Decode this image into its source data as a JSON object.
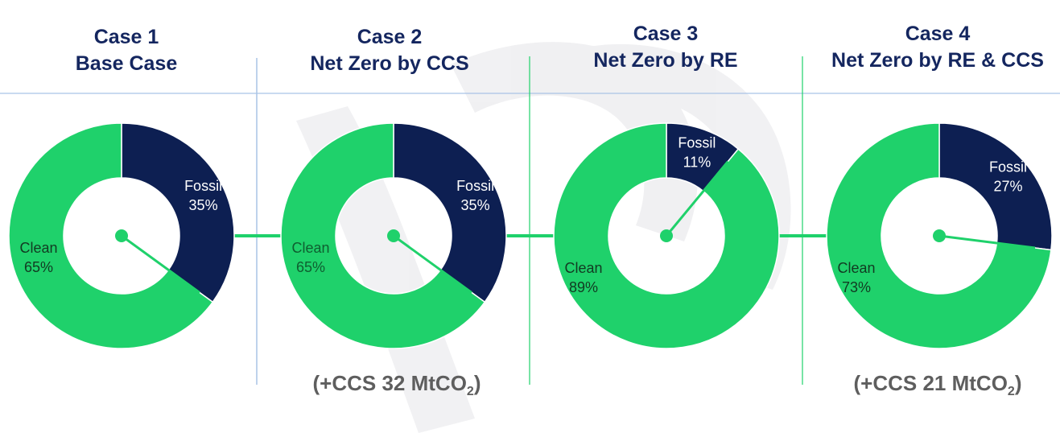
{
  "colors": {
    "fossil": "#0d1f52",
    "clean": "#1fd16b",
    "title": "#14265f",
    "note": "#5e5e5e",
    "divider": "#a9c4e6",
    "connector": "#1fd16b"
  },
  "chart_data": [
    {
      "type": "pie",
      "title": "Case 1",
      "subtitle": "Base Case",
      "slices": [
        {
          "label": "Fossil",
          "value": 35,
          "value_label": "35%"
        },
        {
          "label": "Clean",
          "value": 65,
          "value_label": "65%"
        }
      ],
      "note": ""
    },
    {
      "type": "pie",
      "title": "Case 2",
      "subtitle": "Net Zero by CCS",
      "slices": [
        {
          "label": "Fossil",
          "value": 35,
          "value_label": "35%"
        },
        {
          "label": "Clean",
          "value": 65,
          "value_label": "65%"
        }
      ],
      "note": "(+CCS 32 MtCO",
      "note_sub": "2",
      "note_end": ")"
    },
    {
      "type": "pie",
      "title": "Case 3",
      "subtitle": "Net Zero by RE",
      "slices": [
        {
          "label": "Fossil",
          "value": 11,
          "value_label": "11%"
        },
        {
          "label": "Clean",
          "value": 89,
          "value_label": "89%"
        }
      ],
      "note": ""
    },
    {
      "type": "pie",
      "title": "Case 4",
      "subtitle": "Net Zero by RE & CCS",
      "slices": [
        {
          "label": "Fossil",
          "value": 27,
          "value_label": "27%"
        },
        {
          "label": "Clean",
          "value": 73,
          "value_label": "73%"
        }
      ],
      "note": "(+CCS 21 MtCO",
      "note_sub": "2",
      "note_end": ")"
    }
  ]
}
